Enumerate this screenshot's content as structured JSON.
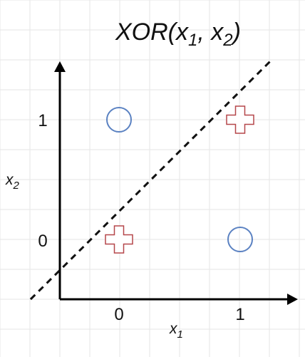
{
  "title": {
    "prefix": "XOR(x",
    "sub1": "1",
    "middle": ", x",
    "sub2": "2",
    "suffix": ")"
  },
  "axes": {
    "x_label": {
      "base": "x",
      "sub": "1"
    },
    "y_label": {
      "base": "x",
      "sub": "2"
    },
    "x_ticks": [
      "0",
      "1"
    ],
    "y_ticks": [
      "0",
      "1"
    ]
  },
  "points": [
    {
      "x": 0,
      "y": 1,
      "marker": "circle-icon",
      "color": "#5b82c2"
    },
    {
      "x": 1,
      "y": 1,
      "marker": "plus-icon",
      "color": "#b5474a"
    },
    {
      "x": 0,
      "y": 0,
      "marker": "plus-icon",
      "color": "#b5474a"
    },
    {
      "x": 1,
      "y": 0,
      "marker": "circle-icon",
      "color": "#5b82c2"
    }
  ],
  "decision_line": {
    "style": "dashed",
    "color": "#111111",
    "from": [
      -0.73,
      -0.5
    ],
    "to": [
      1.26,
      1.5
    ]
  },
  "grid": {
    "on": true,
    "color": "#e6e6e6"
  },
  "axis_color": "#000000"
}
